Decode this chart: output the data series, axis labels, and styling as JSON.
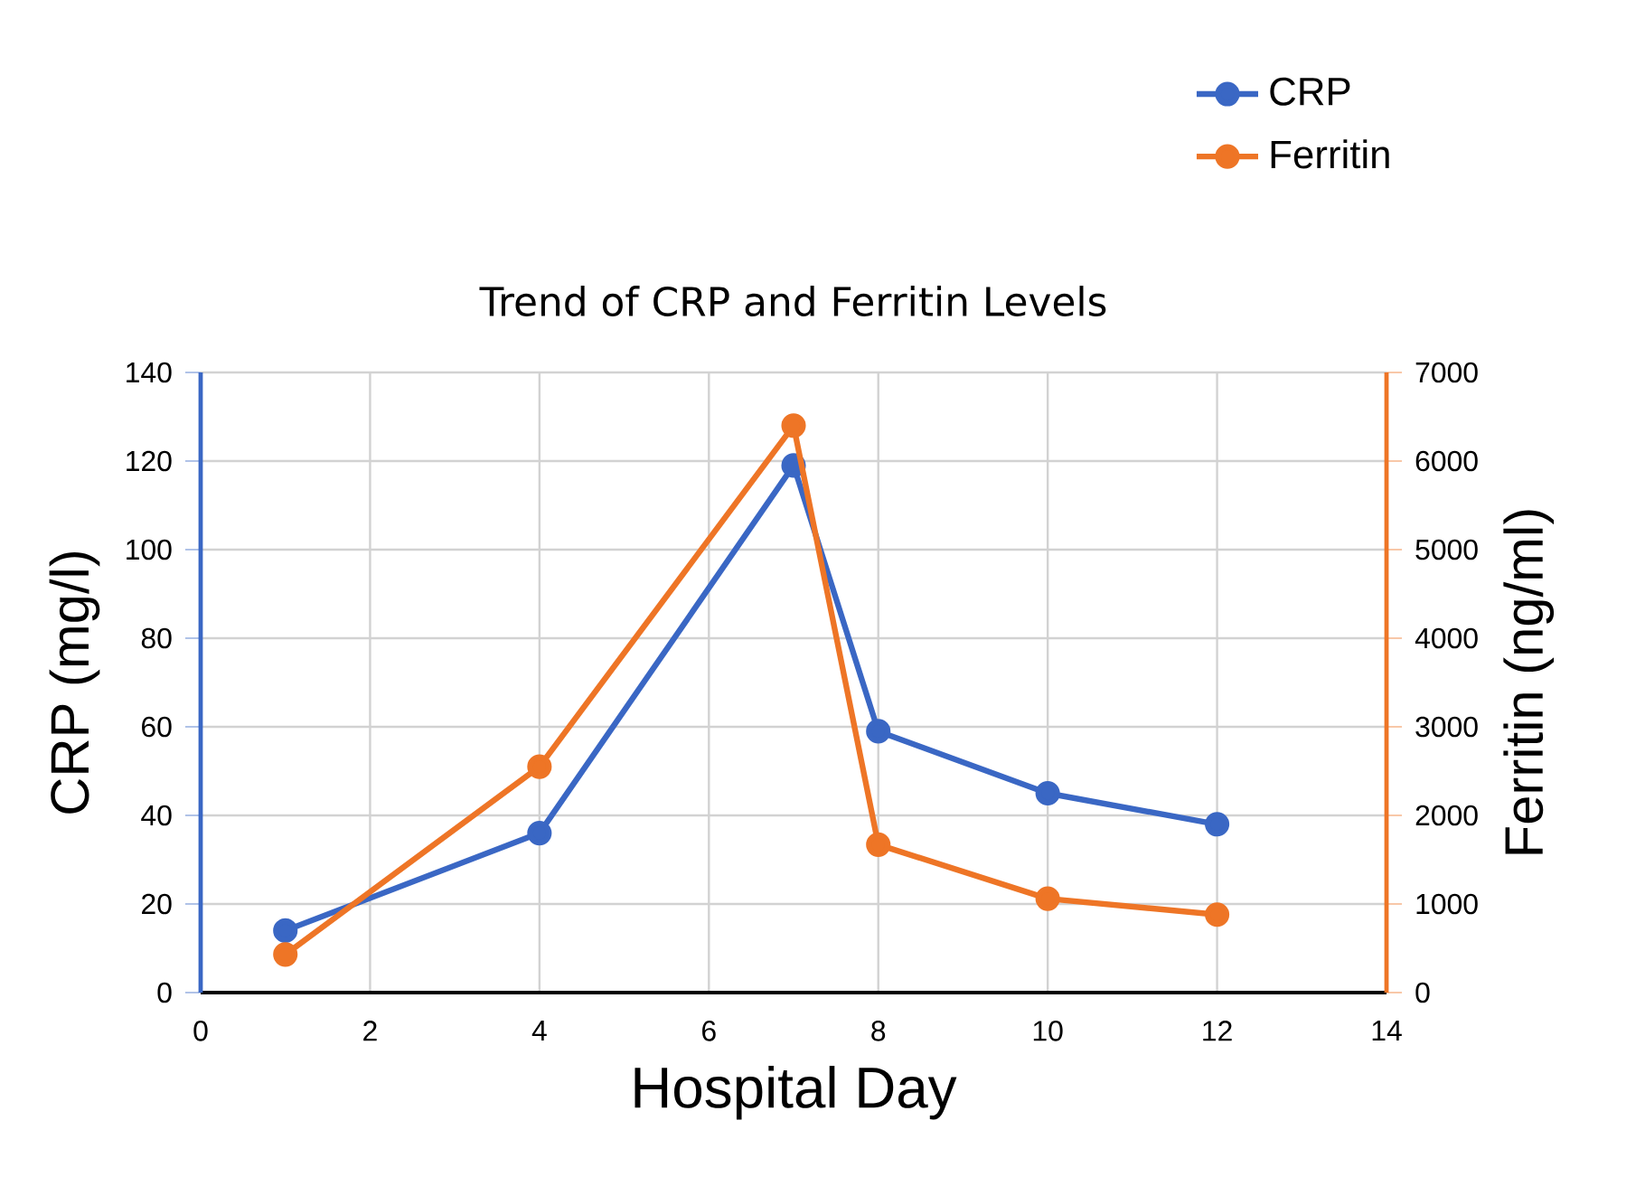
{
  "chart_data": {
    "type": "line",
    "title": "Trend of CRP and Ferritin Levels",
    "xlabel": "Hospital Day",
    "ylabel": "CRP (mg/l)",
    "y2label": "Ferritin (ng/ml)",
    "x": [
      1,
      4,
      7,
      8,
      10,
      12
    ],
    "series": [
      {
        "name": "CRP",
        "color": "#3a67c4",
        "values": [
          14,
          36,
          119,
          59,
          45,
          38
        ]
      },
      {
        "name": "Ferritin",
        "color": "#ee7526",
        "axis": "y2",
        "values": [
          430,
          2550,
          6400,
          1670,
          1060,
          880
        ]
      }
    ],
    "xlim": [
      0,
      14
    ],
    "xticks": [
      0,
      2,
      4,
      6,
      8,
      10,
      12,
      14
    ],
    "ylim": [
      0,
      140
    ],
    "yticks": [
      0,
      20,
      40,
      60,
      80,
      100,
      120,
      140
    ],
    "y2lim": [
      0,
      7000
    ],
    "y2ticks": [
      0,
      1000,
      2000,
      3000,
      4000,
      5000,
      6000,
      7000
    ],
    "grid": true,
    "legend": "top right",
    "marker": "circle",
    "line_style": "solid"
  }
}
